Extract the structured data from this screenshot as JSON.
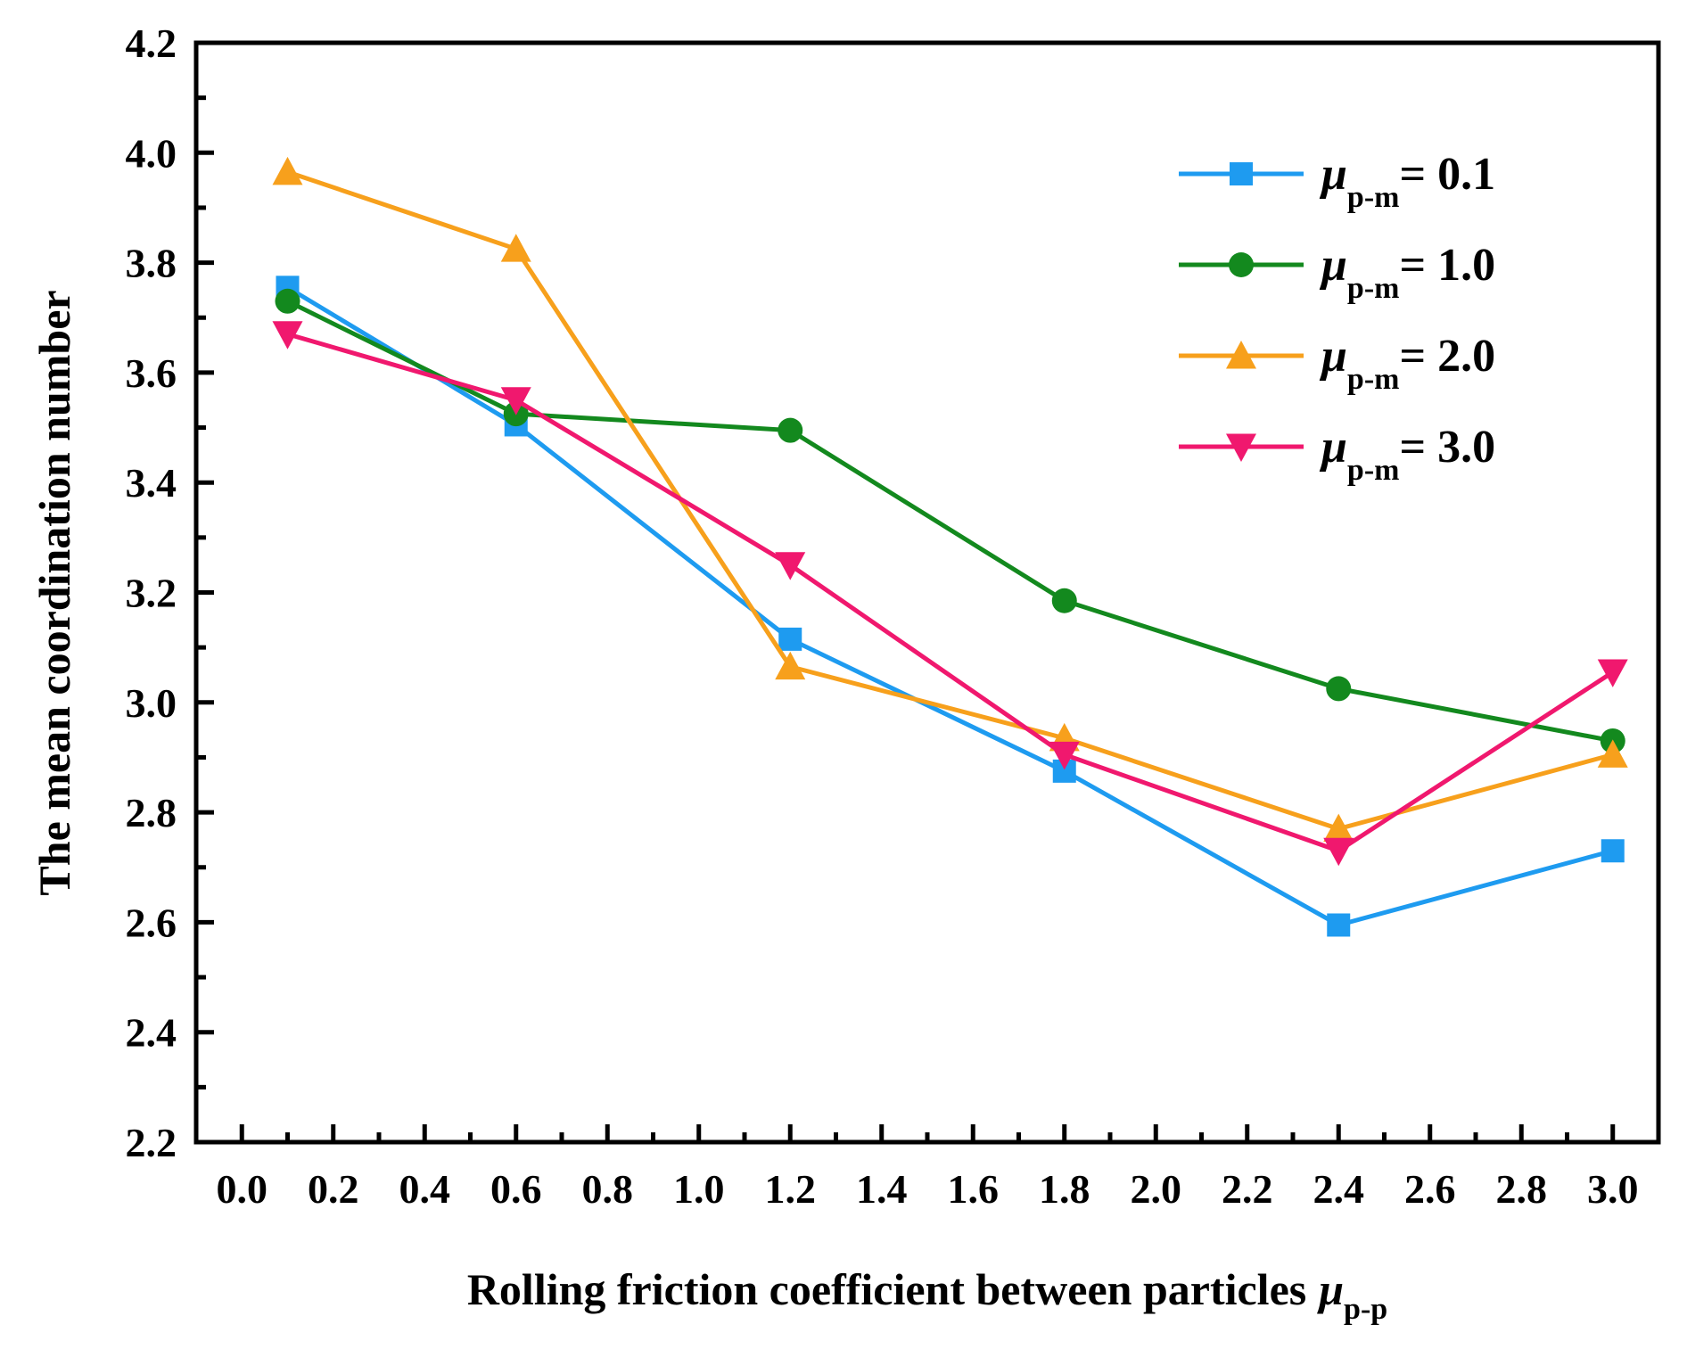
{
  "chart_data": {
    "type": "line",
    "title": "",
    "xlabel": "Rolling friction coefficient between particles",
    "xlabel_symbol": "μ",
    "xlabel_subscript": "p-p",
    "ylabel": "The mean coordination number",
    "xlim": [
      -0.1,
      3.1
    ],
    "ylim": [
      2.2,
      4.2
    ],
    "x_ticks": [
      "0.0",
      "0.2",
      "0.4",
      "0.6",
      "0.8",
      "1.0",
      "1.2",
      "1.4",
      "1.6",
      "1.8",
      "2.0",
      "2.2",
      "2.4",
      "2.6",
      "2.8",
      "3.0"
    ],
    "y_ticks": [
      "2.2",
      "2.4",
      "2.6",
      "2.8",
      "3.0",
      "3.2",
      "3.4",
      "3.6",
      "3.8",
      "4.0",
      "4.2"
    ],
    "x": [
      0.1,
      0.6,
      1.2,
      1.8,
      2.4,
      3.0
    ],
    "legend_position": "top-right",
    "series": [
      {
        "name": "μp-m = 0.1",
        "symbol": "μ",
        "subscript": "p-m",
        "value_label": "= 0.1",
        "marker": "square",
        "color": "#1E9BF0",
        "values": [
          3.755,
          3.505,
          3.115,
          2.875,
          2.595,
          2.73
        ]
      },
      {
        "name": "μp-m = 1.0",
        "symbol": "μ",
        "subscript": "p-m",
        "value_label": "= 1.0",
        "marker": "circle",
        "color": "#13891E",
        "values": [
          3.73,
          3.525,
          3.495,
          3.185,
          3.025,
          2.93
        ]
      },
      {
        "name": "μp-m = 2.0",
        "symbol": "μ",
        "subscript": "p-m",
        "value_label": "= 2.0",
        "marker": "triangle-up",
        "color": "#F7A01C",
        "values": [
          3.965,
          3.825,
          3.065,
          2.935,
          2.77,
          2.905
        ]
      },
      {
        "name": "μp-m = 3.0",
        "symbol": "μ",
        "subscript": "p-m",
        "value_label": "= 3.0",
        "marker": "triangle-down",
        "color": "#F0186E",
        "values": [
          3.67,
          3.55,
          3.25,
          2.905,
          2.73,
          3.055
        ]
      }
    ]
  }
}
